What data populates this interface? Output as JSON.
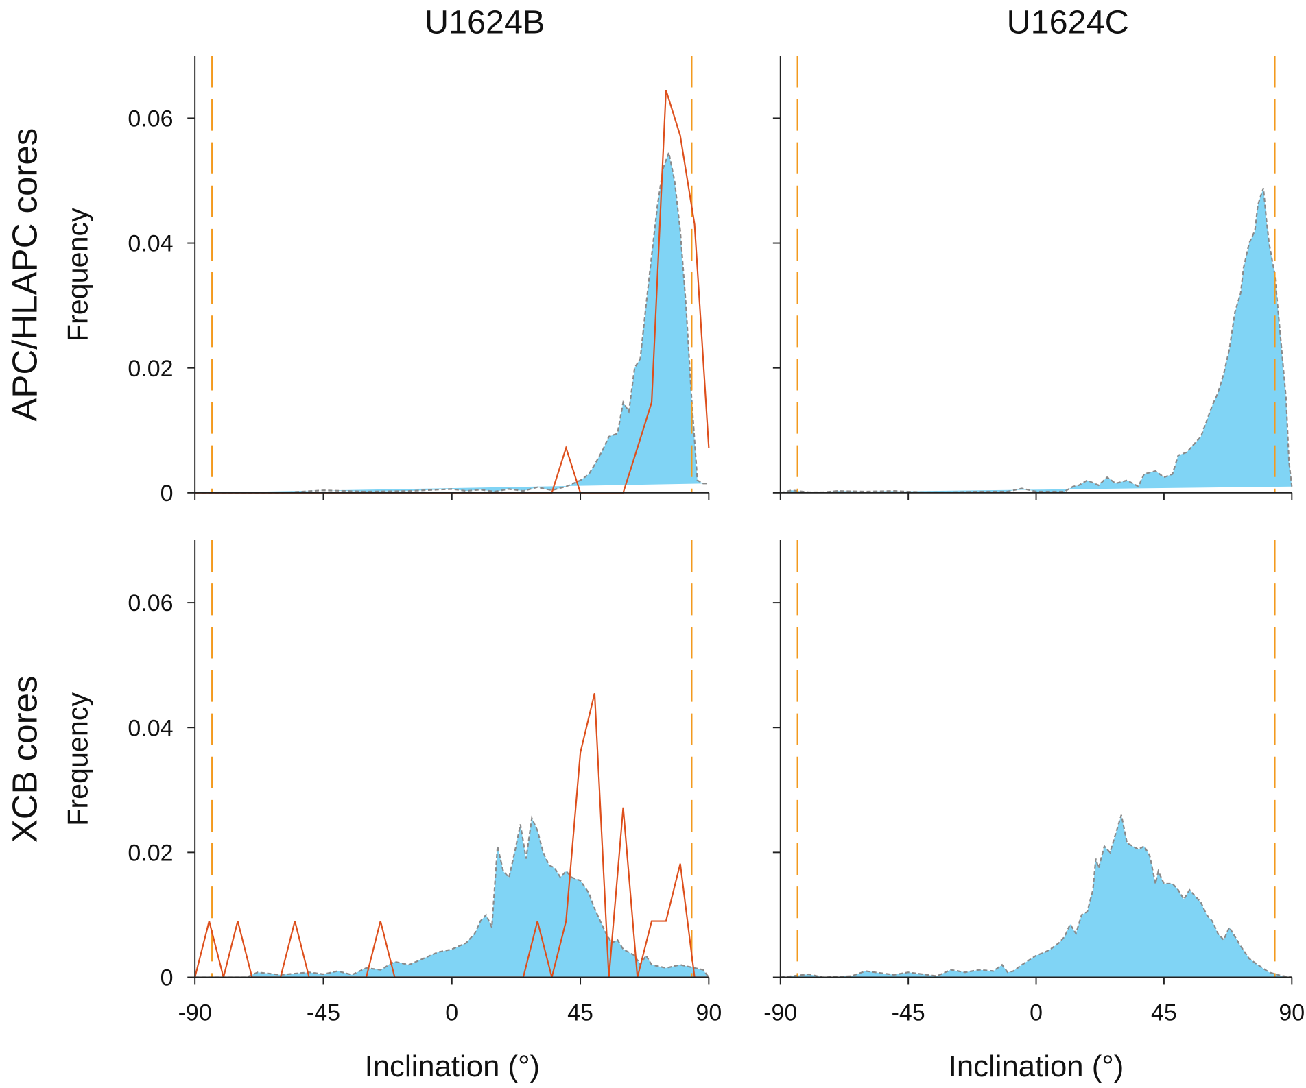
{
  "figure": {
    "col_titles": [
      "U1624B",
      "U1624C"
    ],
    "row_labels": [
      "APC/HLAPC cores",
      "XCB cores"
    ],
    "ylabel": "Frequency",
    "xlabel": "Inclination (°)",
    "colors": {
      "density_fill": "#80d4f5",
      "density_outline": "#8a8a8a",
      "sample_line": "#dd4f1c",
      "reference_line": "#f39a1e",
      "axis": "#222222"
    }
  },
  "chart_data": [
    {
      "type": "area",
      "title": "U1624B",
      "row": "APC/HLAPC cores",
      "xlabel": "Inclination (°)",
      "ylabel": "Frequency",
      "xlim": [
        -90,
        90
      ],
      "ylim": [
        0,
        0.07
      ],
      "xticks": [
        "-90",
        "-45",
        "0",
        "45",
        "90"
      ],
      "yticks": [
        "0",
        "0.02",
        "0.04",
        "0.06"
      ],
      "reference_lines": [
        -84,
        84
      ],
      "density": {
        "x": [
          -90,
          -60,
          -45,
          -30,
          -15,
          0,
          5,
          10,
          15,
          20,
          25,
          30,
          35,
          40,
          45,
          48,
          50,
          53,
          55,
          58,
          60,
          62,
          64,
          66,
          68,
          70,
          72,
          74,
          76,
          78,
          80,
          82,
          84,
          86,
          88,
          90
        ],
        "y": [
          0,
          0,
          0.0004,
          0.0002,
          0.0003,
          0.0006,
          0.0003,
          0.0005,
          0.0002,
          0.0006,
          0.0003,
          0.0009,
          0.0004,
          0.001,
          0.002,
          0.003,
          0.0045,
          0.007,
          0.009,
          0.0095,
          0.0145,
          0.013,
          0.02,
          0.0215,
          0.03,
          0.038,
          0.046,
          0.052,
          0.0545,
          0.05,
          0.042,
          0.03,
          0.015,
          0.002,
          0.0015,
          0.0015
        ]
      },
      "samples": {
        "x": [
          -90,
          -60,
          -30,
          0,
          30,
          35,
          40,
          45,
          50,
          55,
          60,
          65,
          70,
          75,
          80,
          85,
          90
        ],
        "y": [
          0,
          0,
          0,
          0,
          0,
          0,
          0.0072,
          0,
          0,
          0,
          0,
          0.0072,
          0.0145,
          0.0645,
          0.0572,
          0.043,
          0.0072
        ]
      }
    },
    {
      "type": "area",
      "title": "U1624C",
      "row": "APC/HLAPC cores",
      "xlabel": "Inclination (°)",
      "ylabel": "Frequency",
      "xlim": [
        -90,
        90
      ],
      "ylim": [
        0,
        0.07
      ],
      "xticks": [
        "-90",
        "-45",
        "0",
        "45",
        "90"
      ],
      "yticks": [
        "0",
        "0.02",
        "0.04",
        "0.06"
      ],
      "reference_lines": [
        -84,
        84
      ],
      "density": {
        "x": [
          -90,
          -86,
          -80,
          -75,
          -70,
          -60,
          -50,
          -40,
          -30,
          -20,
          -10,
          -5,
          0,
          5,
          10,
          13,
          15,
          18,
          22,
          25,
          28,
          32,
          36,
          38,
          42,
          45,
          48,
          50,
          53,
          55,
          58,
          60,
          62,
          64,
          66,
          68,
          70,
          72,
          73,
          75,
          77,
          78,
          79,
          80,
          81,
          82,
          84,
          86,
          88,
          89,
          90
        ],
        "y": [
          0,
          0.0004,
          0.0001,
          0.0001,
          0.0003,
          0.0002,
          0.0003,
          0.0001,
          0.0001,
          0.0002,
          0.0002,
          0.0007,
          0.0002,
          0.0002,
          0.0002,
          0.001,
          0.0012,
          0.002,
          0.0012,
          0.0025,
          0.0015,
          0.002,
          0.001,
          0.003,
          0.0035,
          0.0025,
          0.003,
          0.006,
          0.0065,
          0.0075,
          0.009,
          0.0115,
          0.014,
          0.016,
          0.019,
          0.023,
          0.029,
          0.032,
          0.036,
          0.04,
          0.042,
          0.046,
          0.0475,
          0.0488,
          0.044,
          0.04,
          0.035,
          0.025,
          0.015,
          0.005,
          0.001
        ]
      },
      "samples": null
    },
    {
      "type": "area",
      "title": "U1624B",
      "row": "XCB cores",
      "xlabel": "Inclination (°)",
      "ylabel": "Frequency",
      "xlim": [
        -90,
        90
      ],
      "ylim": [
        0,
        0.07
      ],
      "xticks": [
        "-90",
        "-45",
        "0",
        "45",
        "90"
      ],
      "yticks": [
        "0",
        "0.02",
        "0.04",
        "0.06"
      ],
      "reference_lines": [
        -84,
        84
      ],
      "density": {
        "x": [
          -90,
          -72,
          -68,
          -60,
          -50,
          -45,
          -40,
          -35,
          -30,
          -25,
          -20,
          -15,
          -10,
          -5,
          0,
          5,
          8,
          10,
          12,
          14,
          16,
          18,
          20,
          22,
          24,
          26,
          28,
          30,
          32,
          34,
          36,
          38,
          40,
          42,
          45,
          48,
          50,
          52,
          54,
          56,
          58,
          60,
          62,
          64,
          66,
          68,
          70,
          75,
          80,
          85,
          88,
          90
        ],
        "y": [
          0,
          0,
          0.0008,
          0.0004,
          0.0008,
          0.0005,
          0.001,
          0.0004,
          0.0015,
          0.0012,
          0.0025,
          0.002,
          0.003,
          0.004,
          0.0045,
          0.0055,
          0.007,
          0.009,
          0.01,
          0.008,
          0.021,
          0.017,
          0.016,
          0.02,
          0.0245,
          0.019,
          0.0255,
          0.0235,
          0.02,
          0.018,
          0.0175,
          0.016,
          0.017,
          0.016,
          0.0155,
          0.0135,
          0.011,
          0.009,
          0.007,
          0.0055,
          0.006,
          0.0045,
          0.004,
          0.0035,
          0.002,
          0.0035,
          0.002,
          0.0015,
          0.002,
          0.0015,
          0.0012,
          0
        ]
      },
      "samples": {
        "x": [
          -90,
          -85,
          -80,
          -75,
          -70,
          -65,
          -60,
          -55,
          -50,
          -45,
          -40,
          -35,
          -30,
          -25,
          -20,
          -15,
          -10,
          -5,
          0,
          5,
          10,
          15,
          20,
          25,
          30,
          35,
          40,
          45,
          50,
          55,
          60,
          65,
          70,
          75,
          80,
          85,
          90
        ],
        "y": [
          0,
          0.009,
          0,
          0.009,
          0,
          0,
          0,
          0.009,
          0,
          0,
          0,
          0,
          0,
          0.009,
          0,
          0,
          0,
          0,
          0,
          0,
          0,
          0,
          0,
          0,
          0.009,
          0,
          0.009,
          0.036,
          0.0455,
          0,
          0.0272,
          0,
          0.009,
          0.009,
          0.0182,
          0,
          0
        ]
      }
    },
    {
      "type": "area",
      "title": "U1624C",
      "row": "XCB cores",
      "xlabel": "Inclination (°)",
      "ylabel": "Frequency",
      "xlim": [
        -90,
        90
      ],
      "ylim": [
        0,
        0.07
      ],
      "xticks": [
        "-90",
        "-45",
        "0",
        "45",
        "90"
      ],
      "yticks": [
        "0",
        "0.02",
        "0.04",
        "0.06"
      ],
      "reference_lines": [
        -84,
        84
      ],
      "density": {
        "x": [
          -90,
          -80,
          -75,
          -65,
          -60,
          -50,
          -45,
          -35,
          -30,
          -25,
          -20,
          -15,
          -12,
          -10,
          -8,
          -5,
          0,
          3,
          5,
          8,
          10,
          12,
          14,
          16,
          18,
          20,
          21,
          22,
          24,
          26,
          28,
          30,
          32,
          34,
          36,
          38,
          40,
          42,
          43,
          45,
          48,
          50,
          52,
          54,
          56,
          58,
          60,
          62,
          64,
          66,
          68,
          70,
          72,
          75,
          78,
          82,
          86,
          90
        ],
        "y": [
          0,
          0.0005,
          0,
          0.0002,
          0.001,
          0.0004,
          0.0008,
          0.0002,
          0.0012,
          0.0008,
          0.0012,
          0.001,
          0.002,
          0.0008,
          0.001,
          0.002,
          0.0035,
          0.004,
          0.0045,
          0.0055,
          0.0065,
          0.0085,
          0.007,
          0.01,
          0.0105,
          0.014,
          0.019,
          0.0175,
          0.021,
          0.02,
          0.023,
          0.026,
          0.0215,
          0.021,
          0.0205,
          0.021,
          0.0195,
          0.015,
          0.017,
          0.015,
          0.015,
          0.014,
          0.0125,
          0.014,
          0.013,
          0.012,
          0.01,
          0.009,
          0.007,
          0.006,
          0.008,
          0.0065,
          0.005,
          0.003,
          0.002,
          0.0008,
          0.0003,
          0
        ]
      },
      "samples": null
    }
  ]
}
